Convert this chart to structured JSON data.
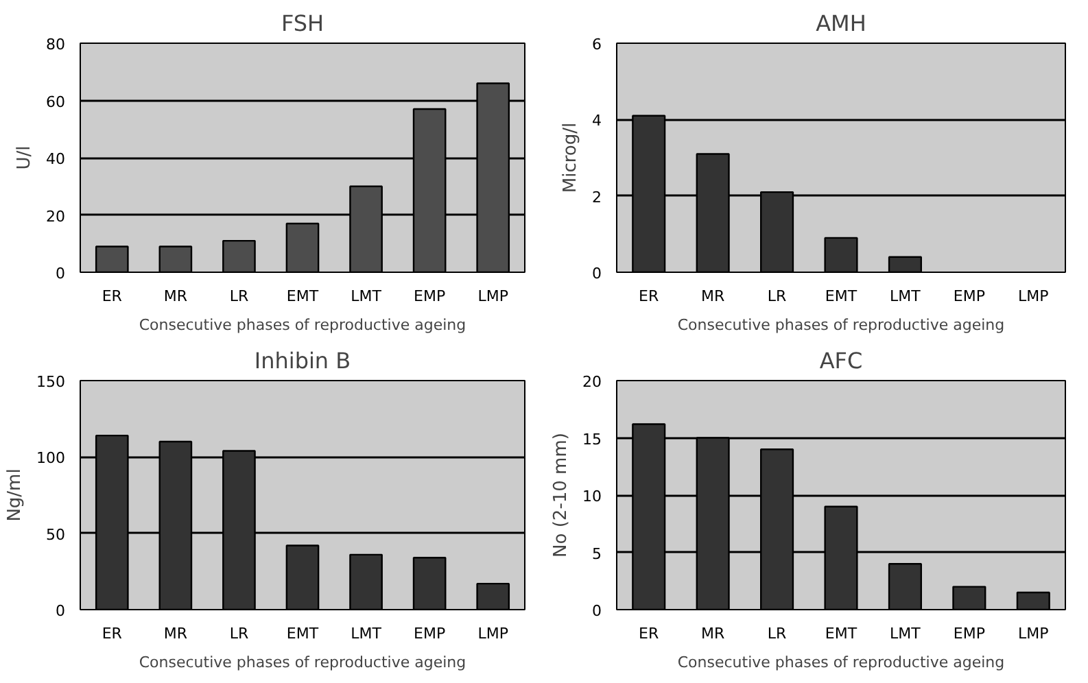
{
  "chart_data": [
    {
      "type": "bar",
      "title": "FSH",
      "xlabel": "Consecutive phases of reproductive ageing",
      "ylabel": "U/l",
      "categories": [
        "ER",
        "MR",
        "LR",
        "EMT",
        "LMT",
        "EMP",
        "LMP"
      ],
      "values": [
        9,
        9,
        11,
        17,
        30,
        57,
        66
      ],
      "color": "#4d4d4d",
      "ylim": [
        0,
        80
      ],
      "yticks": [
        0,
        20,
        40,
        60,
        80
      ],
      "grid": "y"
    },
    {
      "type": "bar",
      "title": "AMH",
      "xlabel": "Consecutive phases of reproductive ageing",
      "ylabel": "Microg/l",
      "categories": [
        "ER",
        "MR",
        "LR",
        "EMT",
        "LMT",
        "EMP",
        "LMP"
      ],
      "values": [
        4.1,
        3.1,
        2.1,
        0.9,
        0.4,
        null,
        null
      ],
      "color": "#333333",
      "ylim": [
        0,
        6
      ],
      "yticks": [
        0,
        2,
        4,
        6
      ],
      "grid": "y"
    },
    {
      "type": "bar",
      "title": "Inhibin B",
      "xlabel": "Consecutive phases of reproductive ageing",
      "ylabel": "Ng/ml",
      "categories": [
        "ER",
        "MR",
        "LR",
        "EMT",
        "LMT",
        "EMP",
        "LMP"
      ],
      "values": [
        114,
        110,
        104,
        42,
        36,
        34,
        17
      ],
      "color": "#333333",
      "ylim": [
        0,
        150
      ],
      "yticks": [
        0,
        50,
        100,
        150
      ],
      "grid": "y"
    },
    {
      "type": "bar",
      "title": "AFC",
      "xlabel": "Consecutive phases of reproductive ageing",
      "ylabel": "No (2-10 mm)",
      "categories": [
        "ER",
        "MR",
        "LR",
        "EMT",
        "LMT",
        "EMP",
        "LMP"
      ],
      "values": [
        16.2,
        15,
        14,
        9,
        4,
        2,
        1.5
      ],
      "color": "#333333",
      "ylim": [
        0,
        20
      ],
      "yticks": [
        0,
        5,
        10,
        15,
        20
      ],
      "grid": "y"
    }
  ]
}
